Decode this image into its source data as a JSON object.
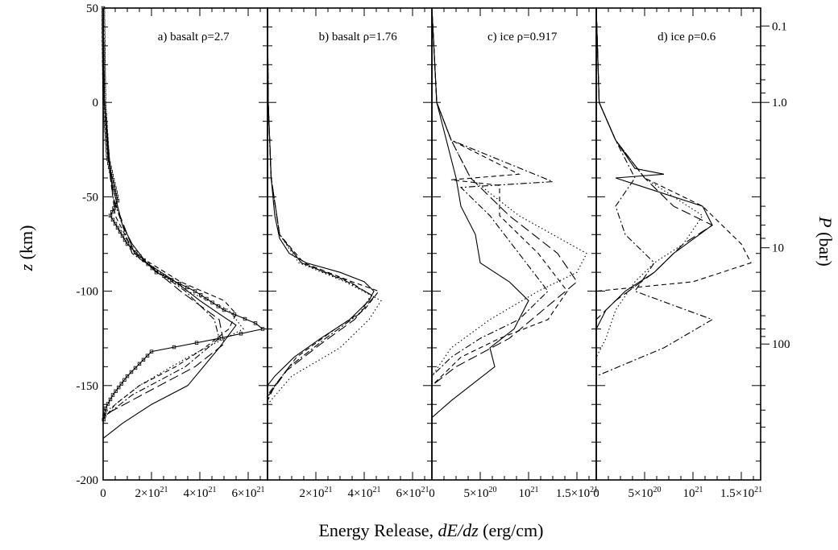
{
  "figure": {
    "xlabel_prefix": "Energy Release, ",
    "xlabel_italic": "dE/dz",
    "xlabel_suffix": " (erg/cm)",
    "ylabel_italic": "z",
    "ylabel_suffix": " (km)",
    "right_ylabel_italic": "P",
    "right_ylabel_suffix": " (bar)"
  },
  "chart_data": [
    {
      "type": "line",
      "panel_label": "a) basalt ρ=2.7",
      "ylim": [
        -200,
        50
      ],
      "yticks": [
        -200,
        -150,
        -100,
        -50,
        0,
        50
      ],
      "ytick_labels": [
        "-200",
        "-150",
        "-100",
        "-50",
        "0",
        "50"
      ],
      "xlim": [
        0,
        6.8e+21
      ],
      "xticks": [
        0,
        2e+21,
        4e+21,
        6e+21
      ],
      "xtick_labels": [
        {
          "mantissa": "0",
          "exp": ""
        },
        {
          "mantissa": "2×10",
          "exp": "21"
        },
        {
          "mantissa": "4×10",
          "exp": "21"
        },
        {
          "mantissa": "6×10",
          "exp": "21"
        }
      ],
      "series": [
        {
          "style": "solid",
          "marker": "square",
          "z": [
            50,
            0,
            -30,
            -52,
            -60,
            -75,
            -90,
            -100,
            -110,
            -117,
            -120,
            -125,
            -132,
            -145,
            -155,
            -162,
            -170
          ],
          "x": [
            0,
            5e+19,
            2e+20,
            6e+20,
            3e+20,
            1e+21,
            2.2e+21,
            3.8e+21,
            5e+21,
            6.3e+21,
            6.6e+21,
            4.8e+21,
            2e+21,
            1e+21,
            4e+20,
            1e+20,
            0
          ]
        },
        {
          "style": "solid",
          "z": [
            50,
            0,
            -40,
            -55,
            -65,
            -75,
            -85,
            -95,
            -105,
            -112,
            -118,
            -130,
            -150,
            -160,
            -170,
            -178
          ],
          "x": [
            0,
            5e+19,
            3e+20,
            6e+20,
            8e+20,
            1.2e+21,
            1.8e+21,
            3e+21,
            4e+21,
            4.8e+21,
            5.5e+21,
            4.8e+21,
            3.5e+21,
            2e+21,
            8e+20,
            0
          ]
        },
        {
          "style": "dashed",
          "z": [
            50,
            0,
            -40,
            -60,
            -80,
            -95,
            -105,
            -112,
            -120,
            -130,
            -140,
            -150,
            -160,
            -168
          ],
          "x": [
            0,
            5e+19,
            3e+20,
            5e+20,
            1.3e+21,
            3.2e+21,
            5e+21,
            5.5e+21,
            5.2e+21,
            4.2e+21,
            3e+21,
            1.5e+21,
            5e+20,
            0
          ]
        },
        {
          "style": "dotted",
          "z": [
            50,
            0,
            -50,
            -80,
            -100,
            -110,
            -120,
            -135,
            -150,
            -165
          ],
          "x": [
            0,
            5e+19,
            4e+20,
            1.2e+21,
            3.5e+21,
            5.2e+21,
            5.8e+21,
            3.5e+21,
            1.5e+21,
            0
          ]
        },
        {
          "style": "dashdot",
          "z": [
            50,
            0,
            -50,
            -80,
            -100,
            -115,
            -125,
            -140,
            -155,
            -167
          ],
          "x": [
            0,
            5e+19,
            4e+20,
            1.2e+21,
            3.4e+21,
            4.6e+21,
            4.8e+21,
            3.4e+21,
            1.2e+21,
            0
          ]
        },
        {
          "style": "longdash",
          "z": [
            50,
            0,
            -50,
            -80,
            -100,
            -115,
            -128,
            -140,
            -155,
            -166
          ],
          "x": [
            0,
            5e+19,
            4e+20,
            1.3e+21,
            3.2e+21,
            4.8e+21,
            5e+21,
            3.8e+21,
            1.6e+21,
            0
          ]
        }
      ]
    },
    {
      "type": "line",
      "panel_label": "b) basalt ρ=1.76",
      "ylim": [
        -200,
        50
      ],
      "yticks": [
        -200,
        -150,
        -100,
        -50,
        0,
        50
      ],
      "ytick_labels": [
        "",
        "",
        "",
        "",
        "",
        ""
      ],
      "xlim": [
        0,
        6.8e+21
      ],
      "xticks": [
        0,
        2e+21,
        4e+21,
        6e+21
      ],
      "xtick_labels": [
        {
          "mantissa": "",
          "exp": ""
        },
        {
          "mantissa": "2×10",
          "exp": "21"
        },
        {
          "mantissa": "4×10",
          "exp": "21"
        },
        {
          "mantissa": "6×10",
          "exp": "21"
        }
      ],
      "series": [
        {
          "style": "solid",
          "z": [
            50,
            0,
            -40,
            -60,
            -72,
            -80,
            -85,
            -90,
            -95,
            -100,
            -105,
            -115,
            -125,
            -135,
            -145,
            -150
          ],
          "x": [
            0,
            3e+19,
            1.5e+20,
            3e+20,
            5e+20,
            9e+20,
            1.6e+21,
            3e+21,
            4e+21,
            4.4e+21,
            4.2e+21,
            3.4e+21,
            2.2e+21,
            1.1e+21,
            3e+20,
            0
          ]
        },
        {
          "style": "dashed",
          "z": [
            50,
            0,
            -40,
            -70,
            -85,
            -95,
            -100,
            -110,
            -120,
            -135,
            -150,
            -158
          ],
          "x": [
            0,
            3e+19,
            1.5e+20,
            5e+20,
            1.5e+21,
            3.5e+21,
            4.6e+21,
            4e+21,
            2.8e+21,
            1.2e+21,
            3e+20,
            0
          ]
        },
        {
          "style": "dotted",
          "z": [
            50,
            0,
            -40,
            -70,
            -85,
            -95,
            -105,
            -115,
            -130,
            -145,
            -160
          ],
          "x": [
            0,
            3e+19,
            1.5e+20,
            5e+20,
            1.3e+21,
            3.2e+21,
            4.7e+21,
            4.2e+21,
            3e+21,
            1e+21,
            0
          ]
        },
        {
          "style": "dashdot",
          "z": [
            50,
            0,
            -40,
            -70,
            -85,
            -95,
            -102,
            -112,
            -125,
            -140,
            -155
          ],
          "x": [
            0,
            3e+19,
            1.5e+20,
            5e+20,
            1.4e+21,
            3.3e+21,
            4.3e+21,
            3.8e+21,
            2.4e+21,
            9e+20,
            0
          ]
        },
        {
          "style": "longdash",
          "z": [
            50,
            0,
            -40,
            -70,
            -85,
            -95,
            -103,
            -115,
            -128,
            -142,
            -156
          ],
          "x": [
            0,
            3e+19,
            1.5e+20,
            5e+20,
            1.4e+21,
            3.4e+21,
            4.4e+21,
            3.6e+21,
            2.2e+21,
            8e+20,
            0
          ]
        }
      ]
    },
    {
      "type": "line",
      "panel_label": "c) ice ρ=0.917",
      "ylim": [
        -200,
        50
      ],
      "yticks": [
        -200,
        -150,
        -100,
        -50,
        0,
        50
      ],
      "ytick_labels": [
        "",
        "",
        "",
        "",
        "",
        ""
      ],
      "xlim": [
        0,
        1.7e+21
      ],
      "xticks": [
        0,
        5e+20,
        1e+21,
        1.5e+21
      ],
      "xtick_labels": [
        {
          "mantissa": "0",
          "exp": ""
        },
        {
          "mantissa": "5×10",
          "exp": "20"
        },
        {
          "mantissa": "10",
          "exp": "21"
        },
        {
          "mantissa": "1.5×10",
          "exp": "21"
        }
      ],
      "series": [
        {
          "style": "solid",
          "z": [
            50,
            0,
            -20,
            -40,
            -55,
            -70,
            -85,
            -95,
            -105,
            -120,
            -130,
            -140,
            -150,
            -158,
            -167
          ],
          "x": [
            0,
            5e+19,
            1.5e+20,
            2.5e+20,
            3e+20,
            4.5e+20,
            5e+20,
            8e+20,
            1e+21,
            8.5e+20,
            6e+20,
            6.5e+20,
            4e+20,
            2e+20,
            0
          ]
        },
        {
          "style": "dashed",
          "z": [
            50,
            0,
            -20,
            -38,
            -41,
            -44,
            -60,
            -80,
            -100,
            -115,
            -125,
            -135,
            -145,
            -150
          ],
          "x": [
            0,
            5e+19,
            2e+20,
            9e+20,
            2e+20,
            7e+20,
            7e+20,
            1.1e+21,
            1.4e+21,
            1.2e+21,
            7e+20,
            3e+20,
            1e+20,
            0
          ]
        },
        {
          "style": "dotted",
          "z": [
            50,
            0,
            -20,
            -40,
            -60,
            -80,
            -90,
            -100,
            -115,
            -130,
            -145
          ],
          "x": [
            0,
            5e+19,
            2e+20,
            4e+20,
            9e+20,
            1.6e+21,
            1.5e+21,
            1.1e+21,
            6e+20,
            2e+20,
            0
          ]
        },
        {
          "style": "dashdot",
          "z": [
            50,
            0,
            -20,
            -42,
            -45,
            -60,
            -80,
            -100,
            -115,
            -125,
            -135,
            -145
          ],
          "x": [
            0,
            5e+19,
            2e+20,
            1.25e+21,
            3e+20,
            6e+20,
            9e+20,
            1.2e+21,
            9e+20,
            5e+20,
            2e+20,
            0
          ]
        },
        {
          "style": "longdash",
          "z": [
            50,
            0,
            -20,
            -40,
            -60,
            -80,
            -95,
            -110,
            -125,
            -140,
            -150
          ],
          "x": [
            0,
            5e+19,
            2e+20,
            4e+20,
            8e+20,
            1.3e+21,
            1.5e+21,
            1.15e+21,
            8e+20,
            2.5e+20,
            0
          ]
        }
      ]
    },
    {
      "type": "line",
      "panel_label": "d) ice ρ=0.6",
      "ylim": [
        -200,
        50
      ],
      "yticks": [
        -200,
        -150,
        -100,
        -50,
        0,
        50
      ],
      "ytick_labels": [
        "",
        "",
        "",
        "",
        "",
        ""
      ],
      "xlim": [
        0,
        1.7e+21
      ],
      "xticks": [
        0,
        5e+20,
        1e+21,
        1.5e+21
      ],
      "xtick_labels": [
        {
          "mantissa": "0",
          "exp": ""
        },
        {
          "mantissa": "5×10",
          "exp": "20"
        },
        {
          "mantissa": "10",
          "exp": "21"
        },
        {
          "mantissa": "1.5×10",
          "exp": "21"
        }
      ],
      "series": [
        {
          "style": "solid",
          "z": [
            50,
            0,
            -20,
            -35,
            -38,
            -40,
            -45,
            -55,
            -65,
            -80,
            -90,
            -100,
            -110,
            -120
          ],
          "x": [
            0,
            3e+19,
            2e+20,
            4e+20,
            7e+20,
            2e+20,
            5e+20,
            1.1e+21,
            1.2e+21,
            8e+20,
            6e+20,
            3e+20,
            1e+20,
            0
          ]
        },
        {
          "style": "dashed",
          "z": [
            50,
            0,
            -20,
            -40,
            -55,
            -65,
            -75,
            -85,
            -95,
            -100
          ],
          "x": [
            0,
            3e+19,
            2e+20,
            5e+20,
            1.1e+21,
            1.3e+21,
            1.5e+21,
            1.6e+21,
            1e+21,
            0
          ]
        },
        {
          "style": "dotted",
          "z": [
            50,
            0,
            -20,
            -40,
            -60,
            -75,
            -85,
            -95,
            -110,
            -125,
            -135
          ],
          "x": [
            0,
            3e+19,
            2e+20,
            5e+20,
            1.1e+21,
            9e+20,
            6e+20,
            4e+20,
            2e+20,
            1e+20,
            0
          ]
        },
        {
          "style": "dashdot",
          "z": [
            50,
            0,
            -20,
            -40,
            -55,
            -70,
            -85,
            -100,
            -115,
            -130,
            -145
          ],
          "x": [
            0,
            3e+19,
            2e+20,
            4e+20,
            2e+20,
            3e+20,
            6e+20,
            4e+20,
            1.2e+21,
            7e+20,
            0
          ]
        },
        {
          "style": "longdash",
          "z": [
            50,
            0,
            -20,
            -40,
            -55,
            -65,
            -75,
            -90,
            -105,
            -115
          ],
          "x": [
            0,
            3e+19,
            2e+20,
            5e+20,
            8e+20,
            1.2e+21,
            9e+20,
            6e+20,
            2e+20,
            0
          ]
        }
      ]
    }
  ],
  "right_axis": {
    "ticks": [
      {
        "z": 40.5,
        "label": "0.1"
      },
      {
        "z": 0,
        "label": "1.0"
      },
      {
        "z": -77,
        "label": "10"
      },
      {
        "z": -128,
        "label": "100"
      }
    ],
    "minor_ticks_z": [
      30,
      20,
      12,
      5,
      -40,
      -55,
      -65,
      -72,
      -100,
      -113,
      -120,
      -124,
      -150,
      -163,
      -172,
      -180
    ]
  }
}
